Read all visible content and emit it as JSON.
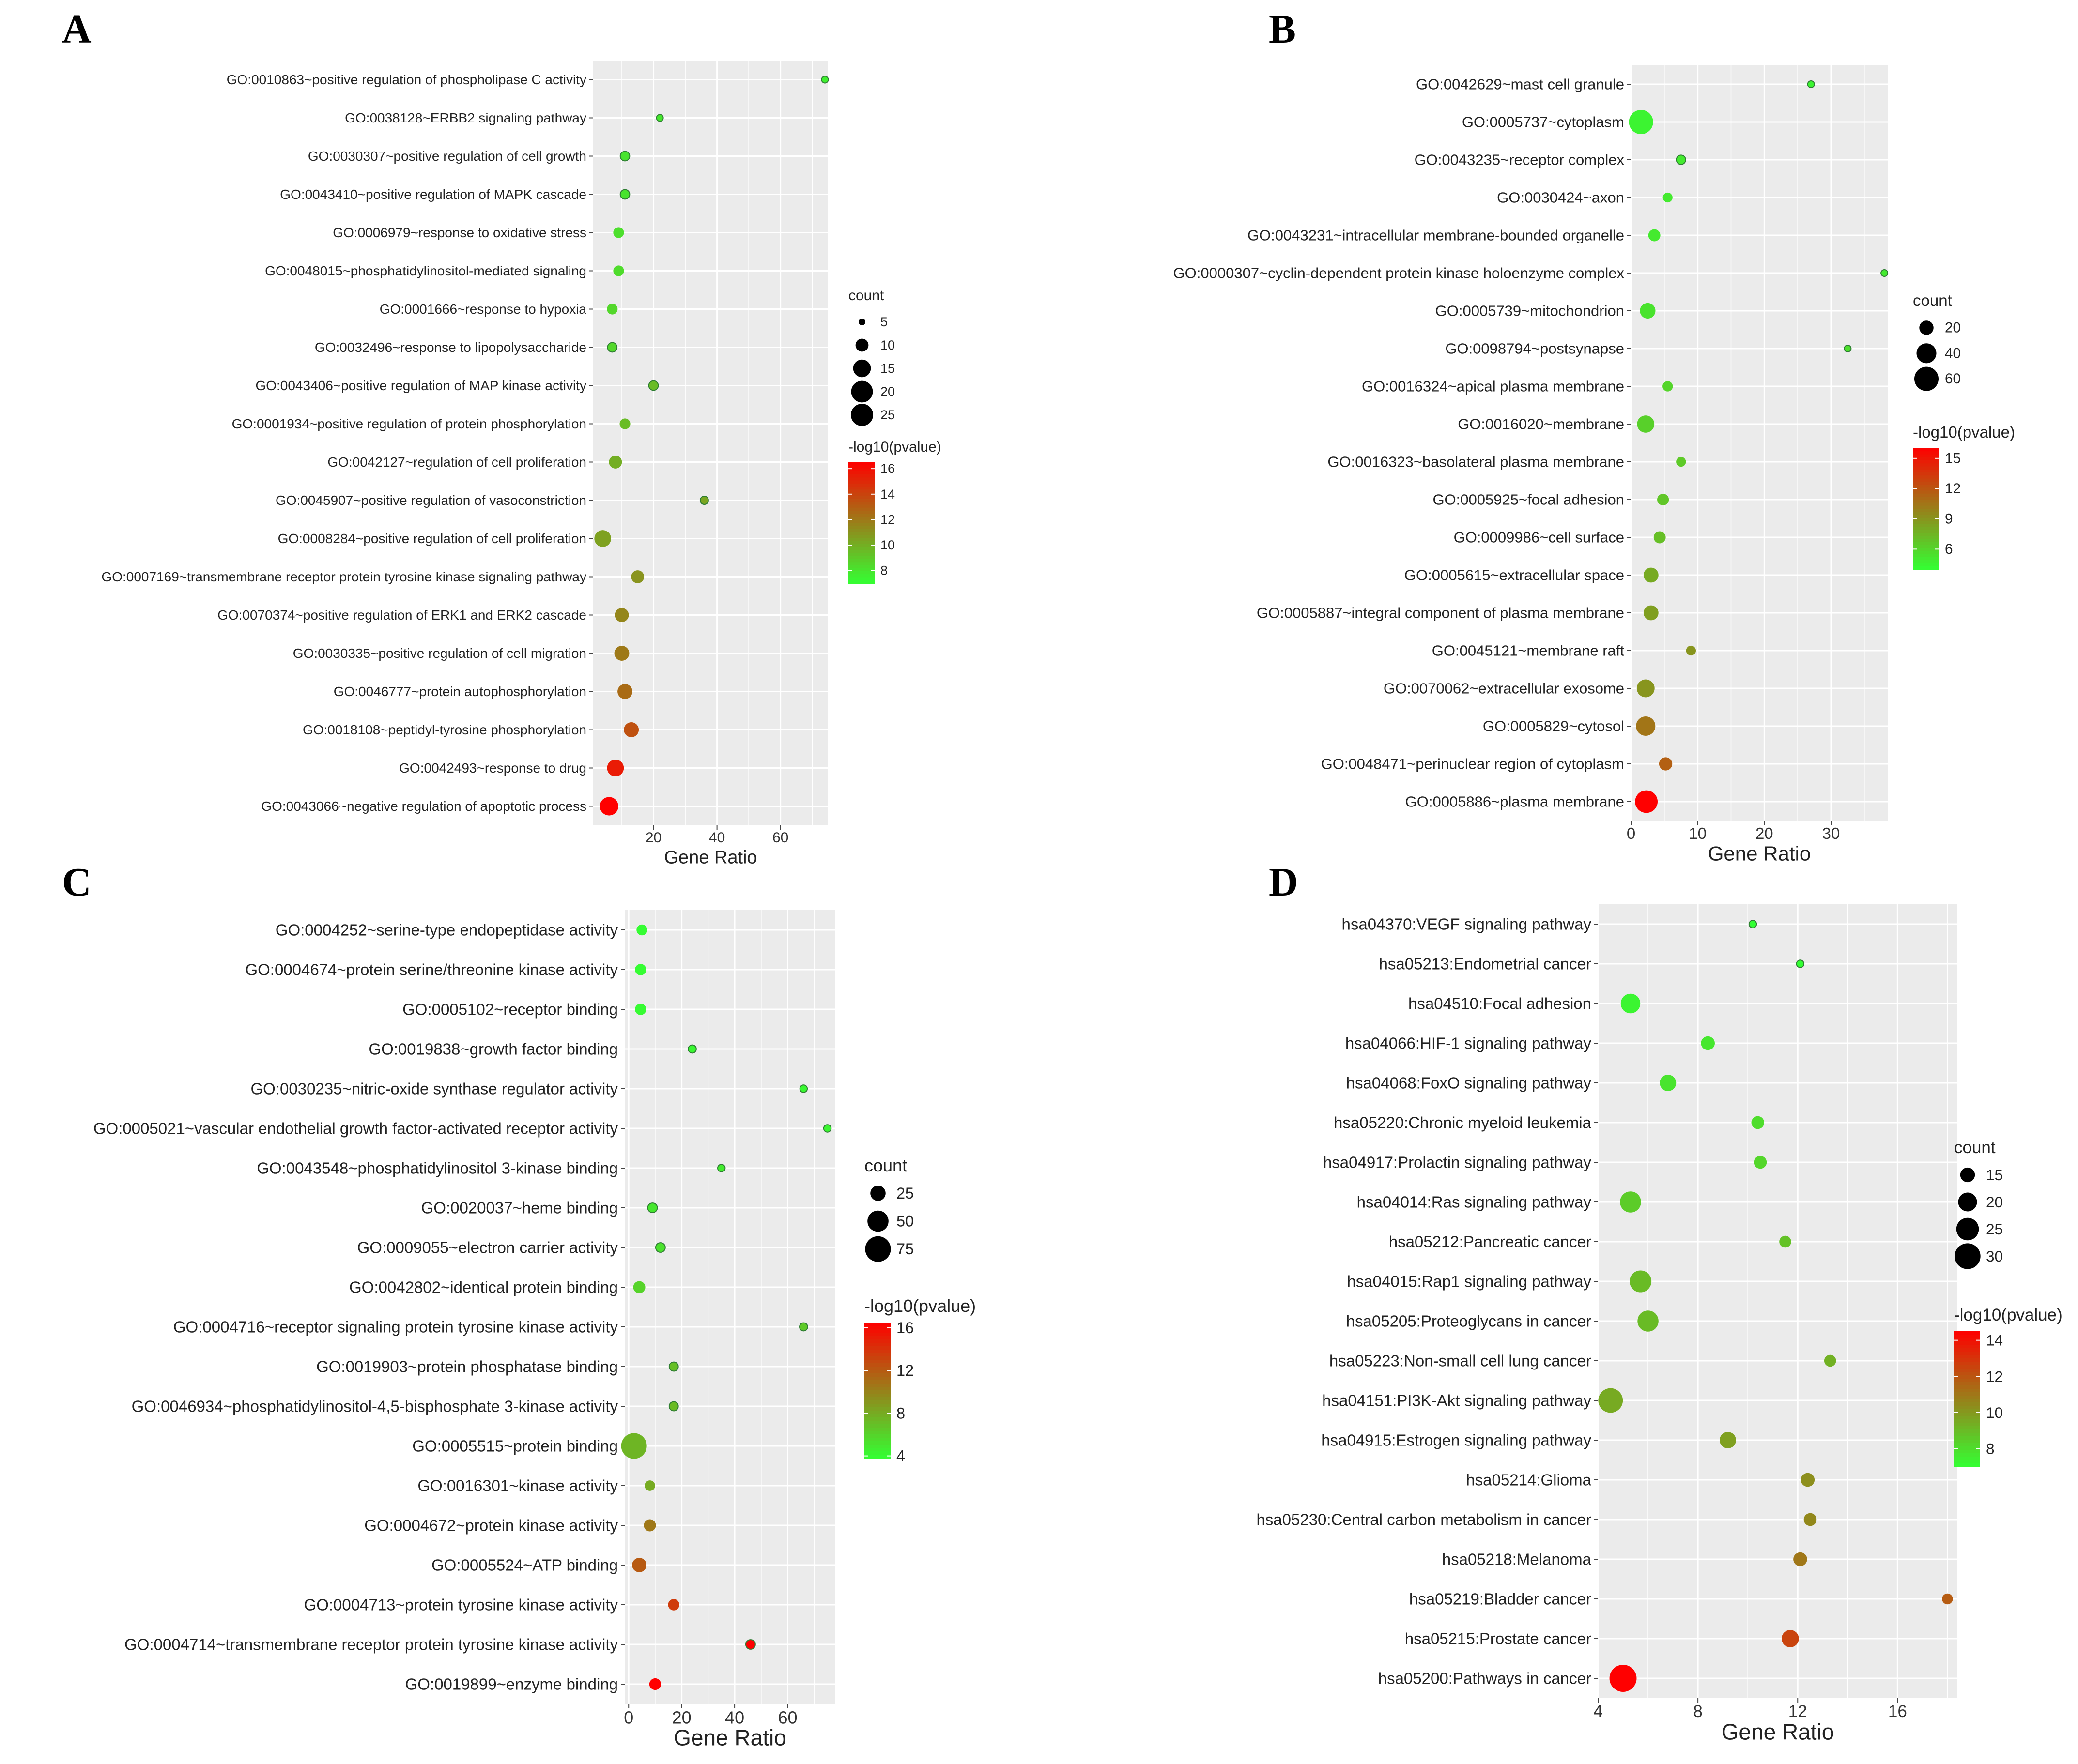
{
  "chart_data": [
    {
      "panel": "A",
      "type": "scatter",
      "subtype": "bubble",
      "xlabel": "Gene Ratio",
      "ylabel": "",
      "xlim": [
        1,
        75
      ],
      "xticks": [
        20,
        40,
        60
      ],
      "grid": true,
      "legend": {
        "placement": "right",
        "size_title": "count",
        "size_values": [
          5,
          10,
          15,
          20,
          25
        ],
        "size_range": [
          5,
          25
        ],
        "color_title": "-log10(pvalue)",
        "color_ticks": [
          16,
          14,
          12,
          10,
          8
        ],
        "color_range": [
          7,
          16.5
        ]
      },
      "points": [
        {
          "term": "GO:0010863~positive regulation of phospholipase C activity",
          "gene_ratio": 74,
          "count": 3,
          "neg_log10_p": 7.6
        },
        {
          "term": "GO:0038128~ERBB2 signaling pathway",
          "gene_ratio": 22,
          "count": 5,
          "neg_log10_p": 7.9
        },
        {
          "term": "GO:0030307~positive regulation of cell growth",
          "gene_ratio": 11,
          "count": 7,
          "neg_log10_p": 8.0
        },
        {
          "term": "GO:0043410~positive regulation of MAPK cascade",
          "gene_ratio": 11,
          "count": 7,
          "neg_log10_p": 8.0
        },
        {
          "term": "GO:0006979~response to oxidative stress",
          "gene_ratio": 9,
          "count": 8,
          "neg_log10_p": 8.2
        },
        {
          "term": "GO:0048015~phosphatidylinositol-mediated signaling",
          "gene_ratio": 9,
          "count": 8,
          "neg_log10_p": 8.3
        },
        {
          "term": "GO:0001666~response to hypoxia",
          "gene_ratio": 7,
          "count": 8,
          "neg_log10_p": 8.5
        },
        {
          "term": "GO:0032496~response to lipopolysaccharide",
          "gene_ratio": 7,
          "count": 7,
          "neg_log10_p": 8.5
        },
        {
          "term": "GO:0043406~positive regulation of MAP kinase activity",
          "gene_ratio": 20,
          "count": 7,
          "neg_log10_p": 9.5
        },
        {
          "term": "GO:0001934~positive regulation of protein phosphorylation",
          "gene_ratio": 11,
          "count": 8,
          "neg_log10_p": 9.5
        },
        {
          "term": "GO:0042127~regulation of cell proliferation",
          "gene_ratio": 8,
          "count": 10,
          "neg_log10_p": 10.0
        },
        {
          "term": "GO:0045907~positive regulation of vasoconstriction",
          "gene_ratio": 36,
          "count": 6,
          "neg_log10_p": 10.3
        },
        {
          "term": "GO:0008284~positive regulation of cell proliferation",
          "gene_ratio": 4,
          "count": 14,
          "neg_log10_p": 10.5
        },
        {
          "term": "GO:0007169~transmembrane receptor protein tyrosine kinase signaling pathway",
          "gene_ratio": 15,
          "count": 10,
          "neg_log10_p": 11.0
        },
        {
          "term": "GO:0070374~positive regulation of ERK1 and ERK2 cascade",
          "gene_ratio": 10,
          "count": 11,
          "neg_log10_p": 11.5
        },
        {
          "term": "GO:0030335~positive regulation of cell migration",
          "gene_ratio": 10,
          "count": 12,
          "neg_log10_p": 12.0
        },
        {
          "term": "GO:0046777~protein autophosphorylation",
          "gene_ratio": 11,
          "count": 12,
          "neg_log10_p": 12.5
        },
        {
          "term": "GO:0018108~peptidyl-tyrosine phosphorylation",
          "gene_ratio": 13,
          "count": 12,
          "neg_log10_p": 13.5
        },
        {
          "term": "GO:0042493~response to drug",
          "gene_ratio": 8,
          "count": 14,
          "neg_log10_p": 15.5
        },
        {
          "term": "GO:0043066~negative regulation of apoptotic process",
          "gene_ratio": 6,
          "count": 16,
          "neg_log10_p": 16.5
        }
      ]
    },
    {
      "panel": "B",
      "type": "scatter",
      "subtype": "bubble",
      "xlabel": "Gene Ratio",
      "ylabel": "",
      "xlim": [
        0,
        38.5
      ],
      "xticks": [
        0,
        10,
        20,
        30
      ],
      "grid": true,
      "legend": {
        "placement": "right",
        "size_title": "count",
        "size_values": [
          20,
          40,
          60
        ],
        "size_range": [
          4,
          65
        ],
        "color_title": "-log10(pvalue)",
        "color_ticks": [
          15,
          12,
          9,
          6
        ],
        "color_range": [
          4,
          16
        ]
      },
      "points": [
        {
          "term": "GO:0042629~mast cell granule",
          "gene_ratio": 27,
          "count": 4,
          "neg_log10_p": 4.5
        },
        {
          "term": "GO:0005737~cytoplasm",
          "gene_ratio": 1.5,
          "count": 60,
          "neg_log10_p": 4.5
        },
        {
          "term": "GO:0043235~receptor complex",
          "gene_ratio": 7.5,
          "count": 8,
          "neg_log10_p": 5.0
        },
        {
          "term": "GO:0030424~axon",
          "gene_ratio": 5.5,
          "count": 9,
          "neg_log10_p": 5.0
        },
        {
          "term": "GO:0043231~intracellular membrane-bounded organelle",
          "gene_ratio": 3.5,
          "count": 14,
          "neg_log10_p": 5.0
        },
        {
          "term": "GO:0000307~cyclin-dependent protein kinase holoenzyme complex",
          "gene_ratio": 38,
          "count": 4,
          "neg_log10_p": 5.0
        },
        {
          "term": "GO:0005739~mitochondrion",
          "gene_ratio": 2.5,
          "count": 24,
          "neg_log10_p": 5.3
        },
        {
          "term": "GO:0098794~postsynapse",
          "gene_ratio": 32.5,
          "count": 4,
          "neg_log10_p": 5.5
        },
        {
          "term": "GO:0016324~apical plasma membrane",
          "gene_ratio": 5.5,
          "count": 10,
          "neg_log10_p": 6.0
        },
        {
          "term": "GO:0016020~membrane",
          "gene_ratio": 2.2,
          "count": 30,
          "neg_log10_p": 6.2
        },
        {
          "term": "GO:0016323~basolateral plasma membrane",
          "gene_ratio": 7.5,
          "count": 9,
          "neg_log10_p": 6.5
        },
        {
          "term": "GO:0005925~focal adhesion",
          "gene_ratio": 4.8,
          "count": 13,
          "neg_log10_p": 6.7
        },
        {
          "term": "GO:0009986~cell surface",
          "gene_ratio": 4.3,
          "count": 14,
          "neg_log10_p": 7.0
        },
        {
          "term": "GO:0005615~extracellular space",
          "gene_ratio": 3.0,
          "count": 22,
          "neg_log10_p": 8.0
        },
        {
          "term": "GO:0005887~integral component of plasma membrane",
          "gene_ratio": 3.0,
          "count": 22,
          "neg_log10_p": 8.5
        },
        {
          "term": "GO:0045121~membrane raft",
          "gene_ratio": 9,
          "count": 9,
          "neg_log10_p": 9.0
        },
        {
          "term": "GO:0070062~extracellular exosome",
          "gene_ratio": 2.2,
          "count": 32,
          "neg_log10_p": 9.0
        },
        {
          "term": "GO:0005829~cytosol",
          "gene_ratio": 2.2,
          "count": 38,
          "neg_log10_p": 10.5
        },
        {
          "term": "GO:0048471~perinuclear region of cytoplasm",
          "gene_ratio": 5.2,
          "count": 17,
          "neg_log10_p": 11.5
        },
        {
          "term": "GO:0005886~plasma membrane",
          "gene_ratio": 2.3,
          "count": 52,
          "neg_log10_p": 16.0
        }
      ]
    },
    {
      "panel": "C",
      "type": "scatter",
      "subtype": "bubble",
      "xlabel": "Gene Ratio",
      "ylabel": "",
      "xlim": [
        -1.5,
        78
      ],
      "xticks": [
        0,
        20,
        40,
        60
      ],
      "grid": true,
      "legend": {
        "placement": "right",
        "size_title": "count",
        "size_values": [
          25,
          50,
          75
        ],
        "size_range": [
          5,
          88
        ],
        "color_title": "-log10(pvalue)",
        "color_ticks": [
          16,
          12,
          8,
          4
        ],
        "color_range": [
          3.8,
          16.5
        ]
      },
      "points": [
        {
          "term": "GO:0004252~serine-type endopeptidase activity",
          "gene_ratio": 5,
          "count": 12,
          "neg_log10_p": 3.9
        },
        {
          "term": "GO:0004674~protein serine/threonine kinase activity",
          "gene_ratio": 4.5,
          "count": 13,
          "neg_log10_p": 3.9
        },
        {
          "term": "GO:0005102~receptor binding",
          "gene_ratio": 4.5,
          "count": 13,
          "neg_log10_p": 4.0
        },
        {
          "term": "GO:0019838~growth factor binding",
          "gene_ratio": 24,
          "count": 6,
          "neg_log10_p": 4.2
        },
        {
          "term": "GO:0030235~nitric-oxide synthase regulator activity",
          "gene_ratio": 66,
          "count": 5,
          "neg_log10_p": 4.2
        },
        {
          "term": "GO:0005021~vascular endothelial growth factor-activated receptor activity",
          "gene_ratio": 75,
          "count": 4,
          "neg_log10_p": 4.3
        },
        {
          "term": "GO:0043548~phosphatidylinositol 3-kinase binding",
          "gene_ratio": 35,
          "count": 5,
          "neg_log10_p": 4.8
        },
        {
          "term": "GO:0020037~heme binding",
          "gene_ratio": 9,
          "count": 9,
          "neg_log10_p": 5.0
        },
        {
          "term": "GO:0009055~electron carrier activity",
          "gene_ratio": 12,
          "count": 9,
          "neg_log10_p": 5.3
        },
        {
          "term": "GO:0042802~identical protein binding",
          "gene_ratio": 4,
          "count": 15,
          "neg_log10_p": 6.0
        },
        {
          "term": "GO:0004716~receptor signaling protein tyrosine kinase activity",
          "gene_ratio": 66,
          "count": 6,
          "neg_log10_p": 6.5
        },
        {
          "term": "GO:0019903~protein phosphatase binding",
          "gene_ratio": 17,
          "count": 8,
          "neg_log10_p": 7.0
        },
        {
          "term": "GO:0046934~phosphatidylinositol-4,5-bisphosphate 3-kinase activity",
          "gene_ratio": 17,
          "count": 8,
          "neg_log10_p": 7.2
        },
        {
          "term": "GO:0005515~protein binding",
          "gene_ratio": 2,
          "count": 75,
          "neg_log10_p": 7.5
        },
        {
          "term": "GO:0016301~kinase activity",
          "gene_ratio": 8,
          "count": 11,
          "neg_log10_p": 8.0
        },
        {
          "term": "GO:0004672~protein kinase activity",
          "gene_ratio": 8,
          "count": 15,
          "neg_log10_p": 10.5
        },
        {
          "term": "GO:0005524~ATP binding",
          "gene_ratio": 4,
          "count": 22,
          "neg_log10_p": 12.0
        },
        {
          "term": "GO:0004713~protein tyrosine kinase activity",
          "gene_ratio": 17,
          "count": 13,
          "neg_log10_p": 13.5
        },
        {
          "term": "GO:0004714~transmembrane receptor protein tyrosine kinase activity",
          "gene_ratio": 46,
          "count": 9,
          "neg_log10_p": 16.5
        },
        {
          "term": "GO:0019899~enzyme binding",
          "gene_ratio": 10,
          "count": 14,
          "neg_log10_p": 16.5
        }
      ]
    },
    {
      "panel": "D",
      "type": "scatter",
      "subtype": "bubble",
      "xlabel": "Gene Ratio",
      "ylabel": "",
      "xlim": [
        4,
        18.4
      ],
      "xticks": [
        4,
        8,
        12,
        16
      ],
      "grid": true,
      "legend": {
        "placement": "right",
        "size_title": "count",
        "size_values": [
          15,
          20,
          25,
          30
        ],
        "size_range": [
          8,
          33
        ],
        "color_title": "-log10(pvalue)",
        "color_ticks": [
          14,
          12,
          10,
          8
        ],
        "color_range": [
          7,
          14.5
        ]
      },
      "points": [
        {
          "term": "hsa04370:VEGF signaling pathway",
          "gene_ratio": 10.2,
          "count": 8,
          "neg_log10_p": 7.0
        },
        {
          "term": "hsa05213:Endometrial cancer",
          "gene_ratio": 12.1,
          "count": 7,
          "neg_log10_p": 7.0
        },
        {
          "term": "hsa04510:Focal adhesion",
          "gene_ratio": 5.3,
          "count": 21,
          "neg_log10_p": 7.3
        },
        {
          "term": "hsa04066:HIF-1 signaling pathway",
          "gene_ratio": 8.4,
          "count": 14,
          "neg_log10_p": 7.7
        },
        {
          "term": "hsa04068:FoxO signaling pathway",
          "gene_ratio": 6.8,
          "count": 17,
          "neg_log10_p": 7.8
        },
        {
          "term": "hsa05220:Chronic myeloid leukemia",
          "gene_ratio": 10.4,
          "count": 13,
          "neg_log10_p": 8.0
        },
        {
          "term": "hsa04917:Prolactin signaling pathway",
          "gene_ratio": 10.5,
          "count": 13,
          "neg_log10_p": 8.2
        },
        {
          "term": "hsa04014:Ras signaling pathway",
          "gene_ratio": 5.3,
          "count": 23,
          "neg_log10_p": 8.5
        },
        {
          "term": "hsa05212:Pancreatic cancer",
          "gene_ratio": 11.5,
          "count": 12,
          "neg_log10_p": 8.8
        },
        {
          "term": "hsa04015:Rap1 signaling pathway",
          "gene_ratio": 5.7,
          "count": 24,
          "neg_log10_p": 9.0
        },
        {
          "term": "hsa05205:Proteoglycans in cancer",
          "gene_ratio": 6.0,
          "count": 23,
          "neg_log10_p": 9.0
        },
        {
          "term": "hsa05223:Non-small cell lung cancer",
          "gene_ratio": 13.3,
          "count": 12,
          "neg_log10_p": 9.3
        },
        {
          "term": "hsa04151:PI3K-Akt signaling pathway",
          "gene_ratio": 4.5,
          "count": 28,
          "neg_log10_p": 9.5
        },
        {
          "term": "hsa04915:Estrogen signaling pathway",
          "gene_ratio": 9.2,
          "count": 17,
          "neg_log10_p": 9.8
        },
        {
          "term": "hsa05214:Glioma",
          "gene_ratio": 12.4,
          "count": 14,
          "neg_log10_p": 10.3
        },
        {
          "term": "hsa05230:Central carbon metabolism in cancer",
          "gene_ratio": 12.5,
          "count": 13,
          "neg_log10_p": 10.5
        },
        {
          "term": "hsa05218:Melanoma",
          "gene_ratio": 12.1,
          "count": 14,
          "neg_log10_p": 11.0
        },
        {
          "term": "hsa05219:Bladder cancer",
          "gene_ratio": 18.0,
          "count": 11,
          "neg_log10_p": 11.8
        },
        {
          "term": "hsa05215:Prostate cancer",
          "gene_ratio": 11.7,
          "count": 18,
          "neg_log10_p": 12.5
        },
        {
          "term": "hsa05200:Pathways in cancer",
          "gene_ratio": 5.0,
          "count": 32,
          "neg_log10_p": 14.5
        }
      ]
    }
  ]
}
